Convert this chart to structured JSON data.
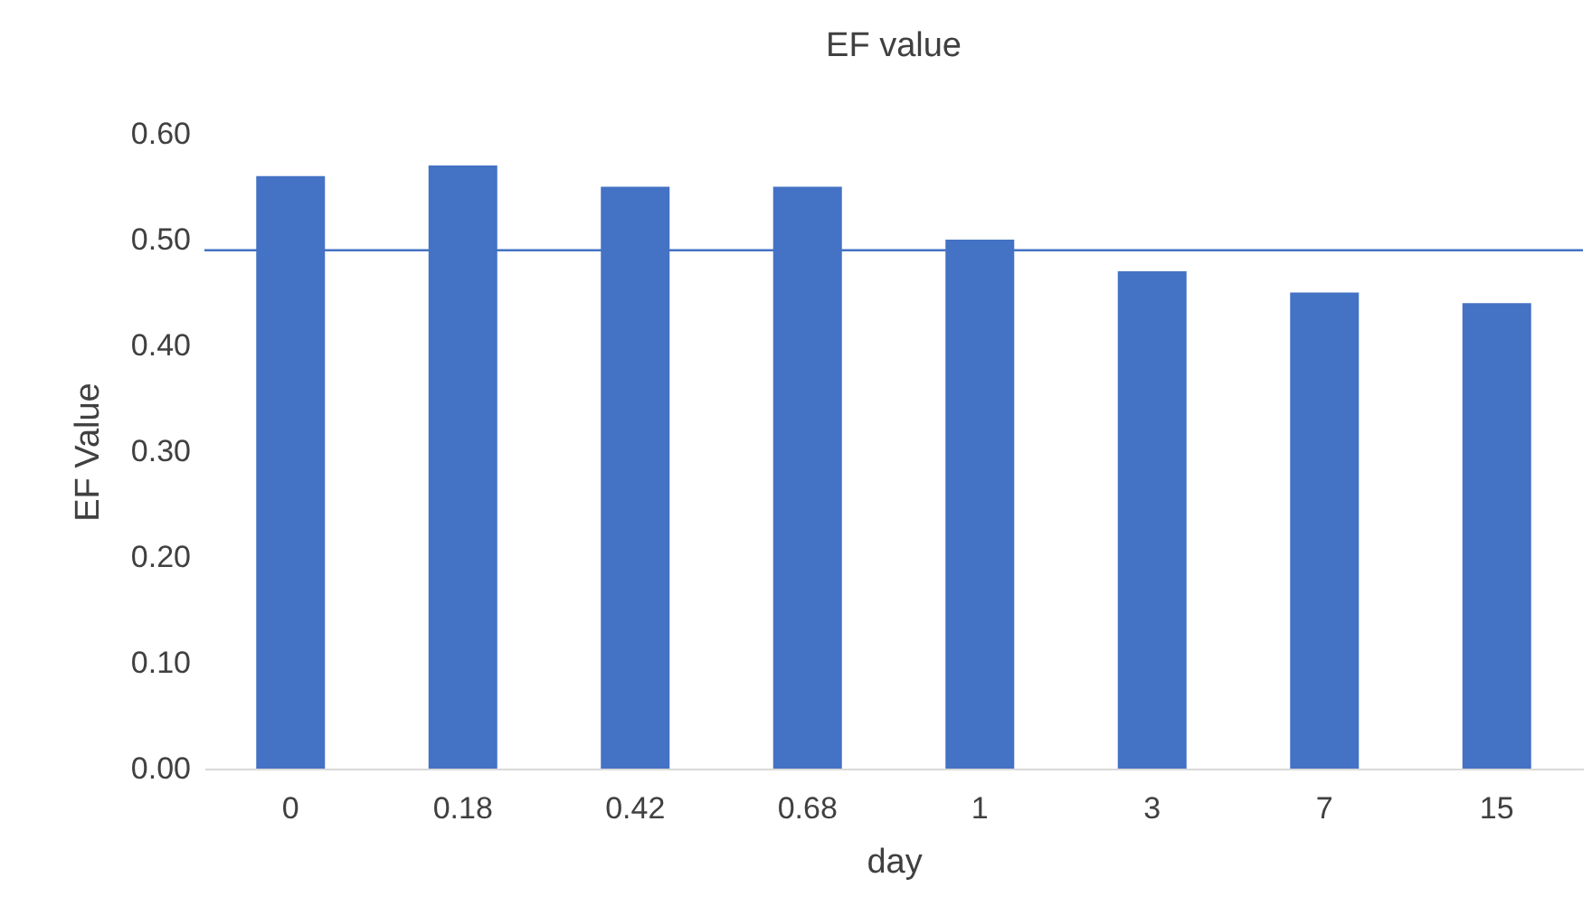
{
  "chart_data": {
    "type": "bar",
    "title": "EF value",
    "xlabel": "day",
    "ylabel": "EF Value",
    "categories": [
      "0",
      "0.18",
      "0.42",
      "0.68",
      "1",
      "3",
      "7",
      "15"
    ],
    "values": [
      0.56,
      0.57,
      0.55,
      0.55,
      0.5,
      0.47,
      0.45,
      0.44
    ],
    "color": "#4472c4",
    "ylim": [
      0,
      0.6
    ],
    "yticks": [
      {
        "value": 0,
        "label": "0.00"
      },
      {
        "value": 0.1,
        "label": "0.10"
      },
      {
        "value": 0.2,
        "label": "0.20"
      },
      {
        "value": 0.3,
        "label": "0.30"
      },
      {
        "value": 0.4,
        "label": "0.40"
      },
      {
        "value": 0.5,
        "label": "0.50"
      },
      {
        "value": 0.6,
        "label": "0.60"
      }
    ],
    "ref_lines": [
      {
        "axis": "y",
        "value": 0.49,
        "color": "#4472c4"
      }
    ],
    "grid": false
  }
}
